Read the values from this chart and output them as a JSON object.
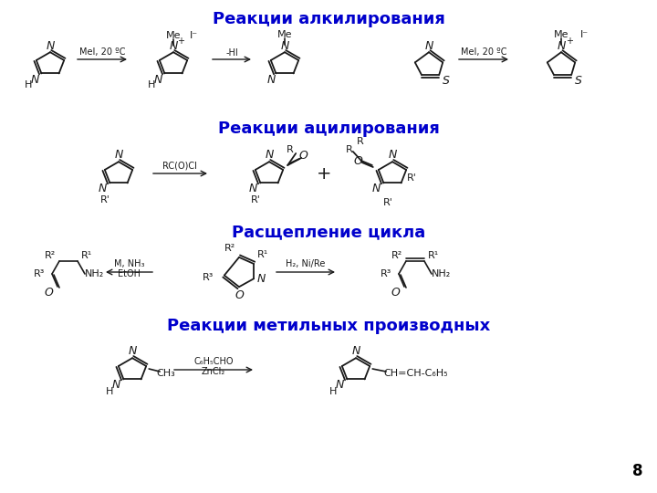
{
  "background_color": "#ffffff",
  "title1": "Реакции алкилирования",
  "title2": "Реакции ацилирования",
  "title3": "Расщепление цикла",
  "title4": "Реакции метильных производных",
  "title_color": "#0000cc",
  "title_fontsize": 13,
  "page_number": "8",
  "text_color": "#000000",
  "struct_color": "#1a1a1a",
  "arrow_color": "#1a1a1a"
}
